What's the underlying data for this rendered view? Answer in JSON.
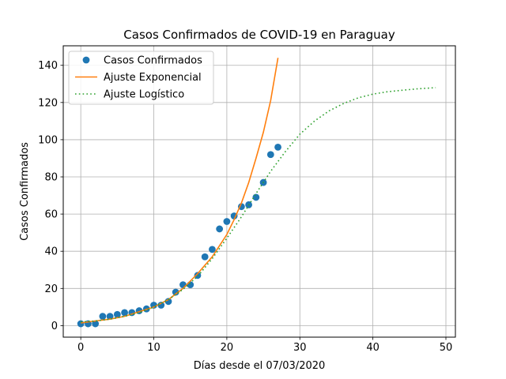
{
  "chart_data": {
    "type": "scatter",
    "title": "Casos Confirmados de COVID-19 en Paraguay",
    "xlabel": "Días desde el 07/03/2020",
    "ylabel": "Casos Confirmados",
    "xlim": [
      -2.4,
      51.3
    ],
    "ylim": [
      -6.2,
      150.5
    ],
    "xticks": [
      0,
      10,
      20,
      30,
      40,
      50
    ],
    "yticks": [
      0,
      20,
      40,
      60,
      80,
      100,
      120,
      140
    ],
    "grid": true,
    "legend_position": "top-left",
    "series": [
      {
        "name": "Casos Confirmados",
        "kind": "scatter",
        "color": "#1f77b4",
        "x": [
          0,
          1,
          2,
          3,
          4,
          5,
          6,
          7,
          8,
          9,
          10,
          11,
          12,
          13,
          14,
          15,
          16,
          17,
          18,
          19,
          20,
          21,
          22,
          23,
          24,
          25,
          26,
          27
        ],
        "y": [
          1,
          1,
          1,
          5,
          5,
          6,
          7,
          7,
          8,
          9,
          11,
          11,
          13,
          18,
          22,
          22,
          27,
          37,
          41,
          52,
          56,
          59,
          64,
          65,
          69,
          77,
          92,
          96
        ]
      },
      {
        "name": "Ajuste Exponencial",
        "kind": "line",
        "color": "#ff7f0e",
        "x": [
          0,
          2,
          4,
          6,
          8,
          10,
          12,
          14,
          16,
          18,
          19,
          20,
          21,
          22,
          23,
          24,
          25,
          26,
          27
        ],
        "y": [
          1.5,
          2.5,
          3.5,
          5,
          7.5,
          10,
          14,
          20,
          28,
          37,
          43,
          49,
          57,
          66,
          77,
          90,
          104,
          121,
          144
        ]
      },
      {
        "name": "Ajuste Logístico",
        "kind": "dotted",
        "color": "#2ca02c",
        "x": [
          0,
          2,
          4,
          6,
          8,
          10,
          12,
          14,
          16,
          18,
          20,
          22,
          24,
          26,
          28,
          30,
          32,
          34,
          36,
          38,
          40,
          42,
          44,
          46,
          48.6
        ],
        "y": [
          2,
          2.5,
          3.5,
          5,
          7,
          10,
          14,
          19.5,
          26.5,
          36,
          47,
          58.5,
          71,
          83,
          93.5,
          103,
          110,
          115.5,
          119.5,
          122.5,
          124.5,
          125.8,
          126.6,
          127.3,
          128
        ]
      }
    ]
  }
}
